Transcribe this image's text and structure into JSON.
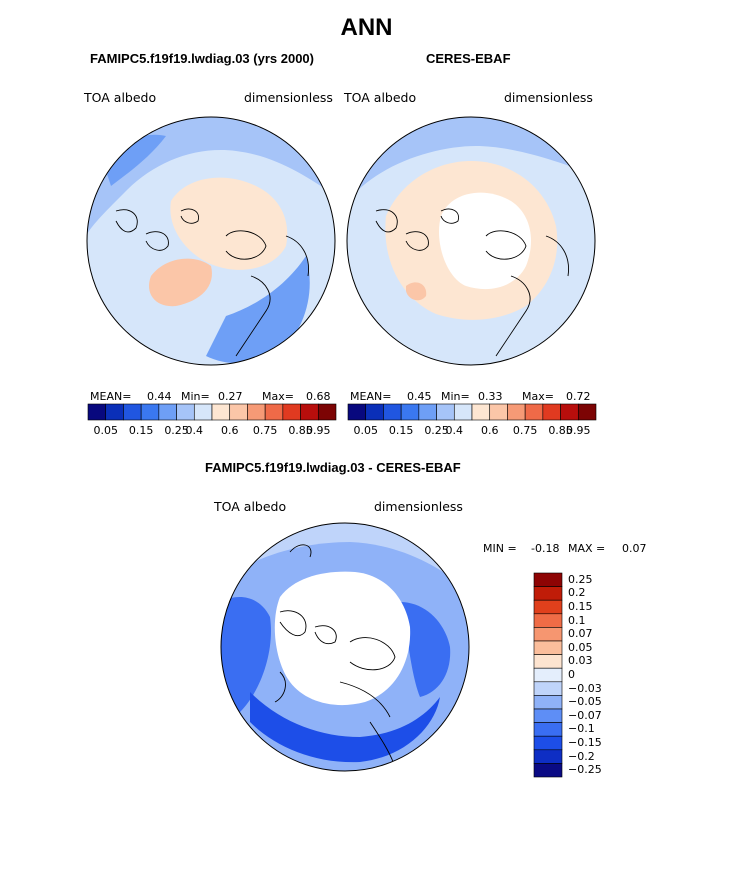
{
  "title": "ANN",
  "palettes": {
    "abs": [
      "#08087e",
      "#0a2fb8",
      "#2056e0",
      "#3a78f0",
      "#6e9ff6",
      "#a6c4f8",
      "#d6e6fa",
      "#fde6d2",
      "#fbc6a8",
      "#f69a76",
      "#ef6a48",
      "#e03a20",
      "#b80e0c",
      "#7c0404"
    ],
    "diff": [
      "#0a0a84",
      "#0e2ec4",
      "#1d4ee8",
      "#3a6ef2",
      "#5e8ef6",
      "#8fb2f8",
      "#bfd4fa",
      "#e4eefc",
      "#fde4d0",
      "#fbbe9c",
      "#f69670",
      "#ef6c46",
      "#e0401c",
      "#c01c08",
      "#8e0404"
    ]
  },
  "map_colors": {
    "ocean_pale": "#d6e6fa",
    "light_blue": "#a6c4f8",
    "mid_blue": "#6e9ff6",
    "peach": "#fde6d2",
    "salmon": "#fbc6a8",
    "white": "#ffffff",
    "diff_bg": "#bfd4fa",
    "diff_light": "#8fb2f8",
    "diff_blue": "#3a6ef2",
    "diff_dark": "#1d4ee8",
    "coast": "#000000"
  },
  "panels": [
    {
      "name": "model",
      "title": "FAMIPC5.f19f19.lwdiag.03 (yrs 2000)",
      "left_label": "TOA albedo",
      "right_label": "dimensionless",
      "stats": {
        "mean_label": "MEAN=",
        "mean": "0.44",
        "min_label": "Min=",
        "min": "0.27",
        "max_label": "Max=",
        "max": "0.68"
      },
      "colorbar_labels": [
        "0.05",
        "0.15",
        "0.25",
        "0.4",
        "0.6",
        "0.75",
        "0.85",
        "0.95"
      ]
    },
    {
      "name": "obs",
      "title": "CERES-EBAF",
      "left_label": "TOA albedo",
      "right_label": "dimensionless",
      "stats": {
        "mean_label": "MEAN=",
        "mean": "0.45",
        "min_label": "Min=",
        "min": "0.33",
        "max_label": "Max=",
        "max": "0.72"
      },
      "colorbar_labels": [
        "0.05",
        "0.15",
        "0.25",
        "0.4",
        "0.6",
        "0.75",
        "0.85",
        "0.95"
      ]
    }
  ],
  "diff": {
    "title": "FAMIPC5.f19f19.lwdiag.03 - CERES-EBAF",
    "left_label": "TOA albedo",
    "right_label": "dimensionless",
    "stats": {
      "min_label": "MIN =",
      "min": "-0.18",
      "max_label": "MAX =",
      "max": "0.07"
    },
    "colorbar_labels": [
      "0.25",
      "0.2",
      "0.15",
      "0.1",
      "0.07",
      "0.05",
      "0.03",
      "0",
      "−0.03",
      "−0.05",
      "−0.07",
      "−0.1",
      "−0.15",
      "−0.2",
      "−0.25"
    ]
  }
}
